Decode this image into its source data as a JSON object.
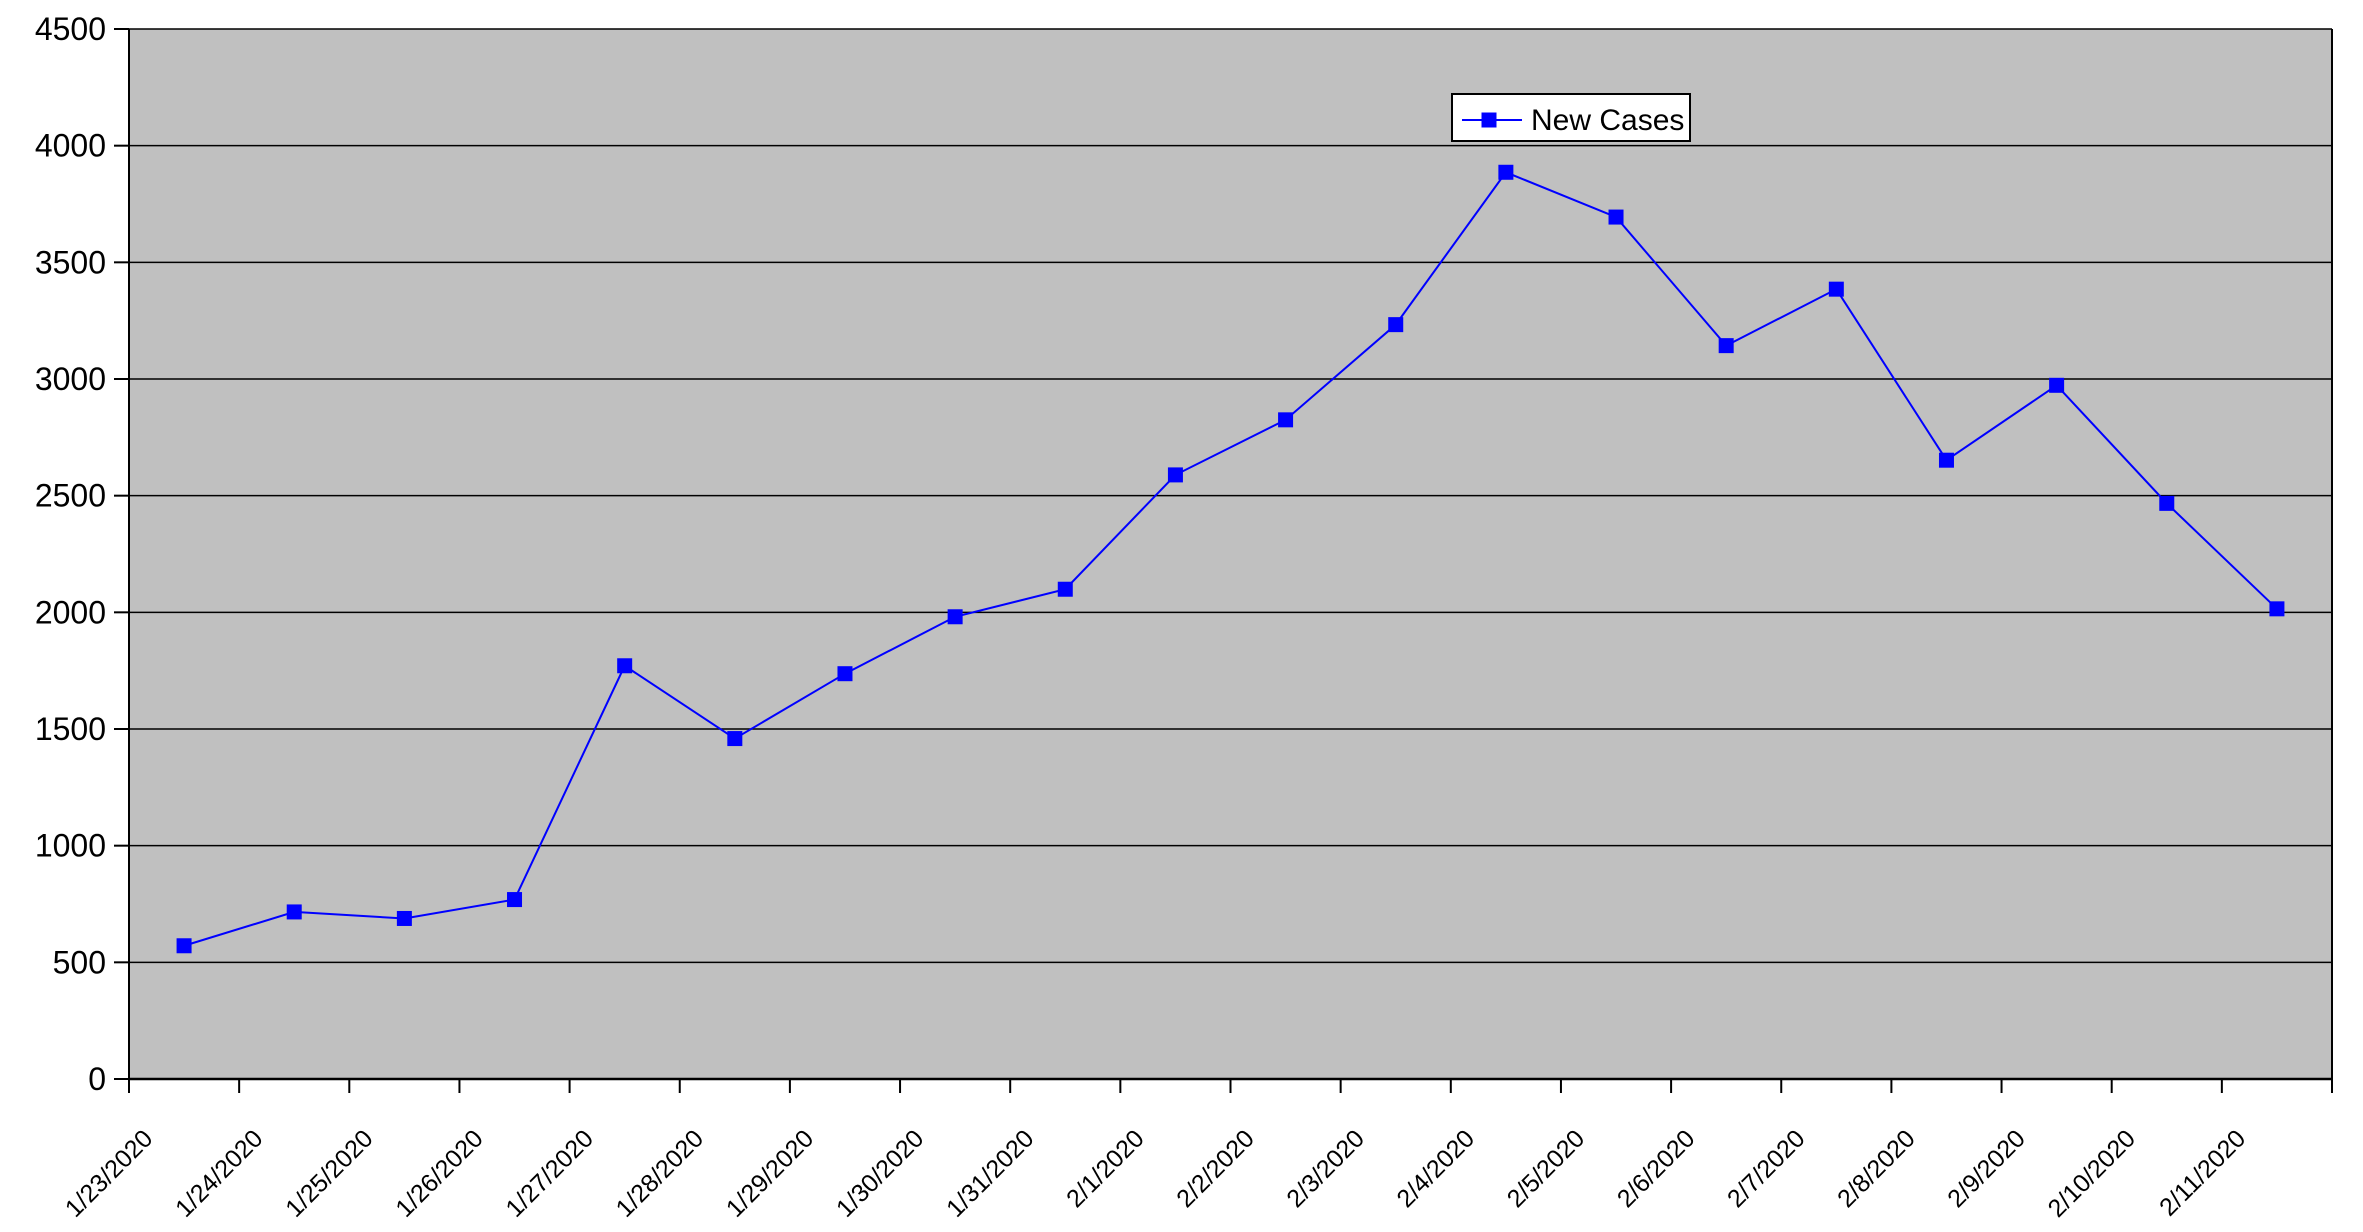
{
  "chart_data": {
    "type": "line",
    "title": "",
    "xlabel": "",
    "ylabel": "",
    "categories": [
      "1/23/2020",
      "1/24/2020",
      "1/25/2020",
      "1/26/2020",
      "1/27/2020",
      "1/28/2020",
      "1/29/2020",
      "1/30/2020",
      "1/31/2020",
      "2/1/2020",
      "2/2/2020",
      "2/3/2020",
      "2/4/2020",
      "2/5/2020",
      "2/6/2020",
      "2/7/2020",
      "2/8/2020",
      "2/9/2020",
      "2/10/2020",
      "2/11/2020"
    ],
    "series": [
      {
        "name": "New Cases",
        "color": "#0000ff",
        "marker": "square",
        "values": [
          571,
          716,
          688,
          769,
          1771,
          1459,
          1737,
          1981,
          2099,
          2589,
          2825,
          3233,
          3886,
          3694,
          3143,
          3385,
          2652,
          2973,
          2467,
          2015
        ]
      }
    ],
    "ylim": [
      0,
      4500
    ],
    "y_tick_step": 500,
    "y_tick_labels": [
      "0",
      "500",
      "1000",
      "1500",
      "2000",
      "2500",
      "3000",
      "3500",
      "4000",
      "4500"
    ],
    "grid": "horizontal",
    "legend": {
      "position": "top-center",
      "background": "#ffffff",
      "border_color": "#000000"
    },
    "plot_background": "#c0c0c0",
    "page_background": "#ffffff",
    "axis_color": "#000000",
    "gridline_color": "#000000",
    "text_color": "#000000"
  }
}
